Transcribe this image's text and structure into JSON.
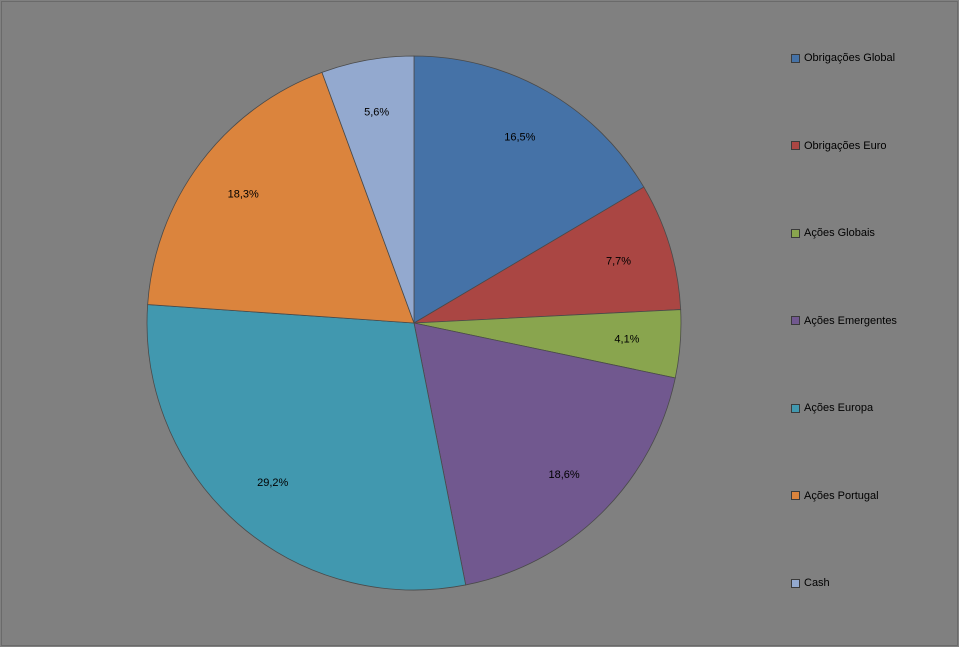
{
  "chart_data": {
    "type": "pie",
    "title": "",
    "legend_position": "right",
    "start_angle_deg": 0,
    "direction": "clockwise",
    "slices": [
      {
        "name": "Obrigações Global",
        "value": 16.5,
        "label": "16,5%",
        "color": "#4572a7"
      },
      {
        "name": "Obrigações Euro",
        "value": 7.7,
        "label": "7,7%",
        "color": "#aa4643"
      },
      {
        "name": "Ações Globais",
        "value": 4.1,
        "label": "4,1%",
        "color": "#89a54e"
      },
      {
        "name": "Ações Emergentes",
        "value": 18.6,
        "label": "18,6%",
        "color": "#71588f"
      },
      {
        "name": "Ações Europa",
        "value": 29.2,
        "label": "29,2%",
        "color": "#4198af"
      },
      {
        "name": "Ações Portugal",
        "value": 18.3,
        "label": "18,3%",
        "color": "#db843d"
      },
      {
        "name": "Cash",
        "value": 5.6,
        "label": "5,6%",
        "color": "#93a9cf"
      }
    ]
  }
}
